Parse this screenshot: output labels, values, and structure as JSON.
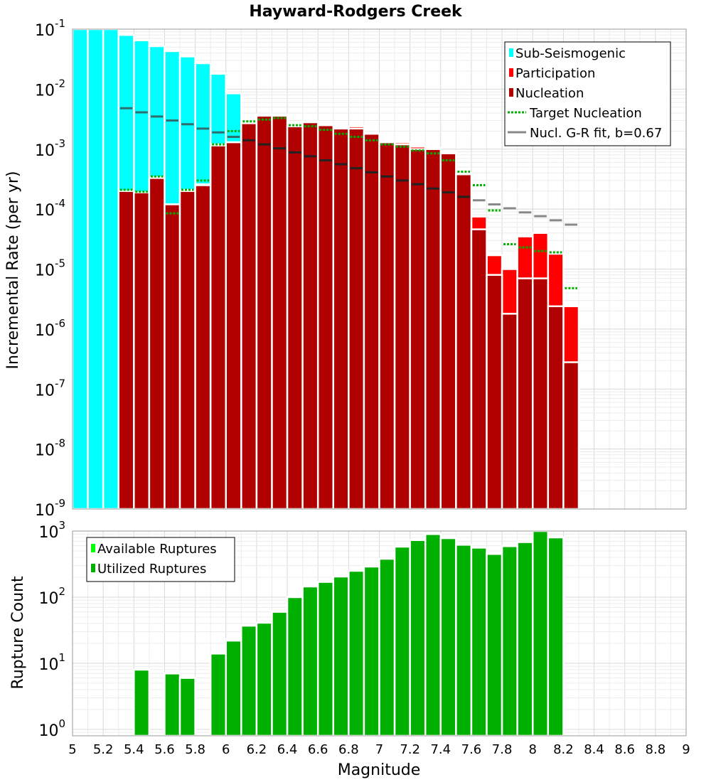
{
  "chart_data": [
    {
      "type": "bar",
      "title": "Hayward-Rodgers Creek",
      "xlabel": "",
      "ylabel": "Incremental Rate (per yr)",
      "y_scale": "log",
      "ylim": [
        1e-09,
        0.1
      ],
      "xlim": [
        5,
        9
      ],
      "y_ticks": [
        {
          "base": "10",
          "exp": "-9",
          "value": 1e-09
        },
        {
          "base": "10",
          "exp": "-8",
          "value": 1e-08
        },
        {
          "base": "10",
          "exp": "-7",
          "value": 1e-07
        },
        {
          "base": "10",
          "exp": "-6",
          "value": 1e-06
        },
        {
          "base": "10",
          "exp": "-5",
          "value": 1e-05
        },
        {
          "base": "10",
          "exp": "-4",
          "value": 0.0001
        },
        {
          "base": "10",
          "exp": "-3",
          "value": 0.001
        },
        {
          "base": "10",
          "exp": "-2",
          "value": 0.01
        },
        {
          "base": "10",
          "exp": "-1",
          "value": 0.1
        }
      ],
      "grid": true,
      "legend_position": "top-right",
      "series": [
        {
          "name": "Sub-Seismogenic",
          "color": "#00FFFF",
          "kind": "bar",
          "x": [
            5.05,
            5.15,
            5.25,
            5.35,
            5.45,
            5.55,
            5.65,
            5.75,
            5.85,
            5.95,
            6.05
          ],
          "values": [
            0.1,
            0.1,
            0.1,
            0.08,
            0.065,
            0.052,
            0.043,
            0.035,
            0.027,
            0.018,
            0.0085
          ]
        },
        {
          "name": "Participation",
          "color": "#FF0000",
          "kind": "bar",
          "x": [
            5.35,
            5.45,
            5.55,
            5.65,
            5.75,
            5.85,
            5.95,
            6.05,
            6.15,
            6.25,
            6.35,
            6.45,
            6.55,
            6.65,
            6.75,
            6.85,
            6.95,
            7.05,
            7.15,
            7.25,
            7.35,
            7.45,
            7.55,
            7.65,
            7.75,
            7.85,
            7.95,
            8.05,
            8.15,
            8.25
          ],
          "values": [
            0.0002,
            0.00019,
            0.00034,
            0.00012,
            0.00021,
            0.00026,
            0.0012,
            0.0013,
            0.0028,
            0.0038,
            0.0038,
            0.0025,
            0.0029,
            0.0026,
            0.0023,
            0.0024,
            0.0018,
            0.0013,
            0.0013,
            0.0011,
            0.00105,
            0.0009,
            0.0004,
            7.5e-05,
            1.7e-05,
            1e-05,
            3.5e-05,
            4e-05,
            1.8e-05,
            2.4e-06
          ]
        },
        {
          "name": "Nucleation",
          "color": "#B00000",
          "kind": "bar",
          "x": [
            5.35,
            5.45,
            5.55,
            5.65,
            5.75,
            5.85,
            5.95,
            6.05,
            6.15,
            6.25,
            6.35,
            6.45,
            6.55,
            6.65,
            6.75,
            6.85,
            6.95,
            7.05,
            7.15,
            7.25,
            7.35,
            7.45,
            7.55,
            7.65,
            7.75,
            7.85,
            7.95,
            8.05,
            8.15,
            8.25
          ],
          "values": [
            0.0002,
            0.00019,
            0.00033,
            0.00012,
            0.0002,
            0.00025,
            0.00115,
            0.0013,
            0.0027,
            0.0036,
            0.0036,
            0.0024,
            0.0028,
            0.0025,
            0.0022,
            0.0022,
            0.0018,
            0.0013,
            0.0012,
            0.001,
            0.001,
            0.00085,
            0.00038,
            4.6e-05,
            8e-06,
            1.8e-06,
            7e-06,
            7e-06,
            2.4e-06,
            2.8e-07
          ]
        },
        {
          "name": "Target Nucleation",
          "color": "#00B000",
          "kind": "dotted-step",
          "x": [
            5.35,
            5.45,
            5.55,
            5.65,
            5.75,
            5.85,
            5.95,
            6.05,
            6.15,
            6.25,
            6.35,
            6.45,
            6.55,
            6.65,
            6.75,
            6.85,
            6.95,
            7.05,
            7.15,
            7.25,
            7.35,
            7.45,
            7.55,
            7.65,
            7.75,
            7.85,
            7.95,
            8.05,
            8.15,
            8.25
          ],
          "values": [
            0.00021,
            0.000195,
            0.00035,
            8.5e-05,
            0.00021,
            0.0003,
            0.0012,
            0.002,
            0.0029,
            0.0031,
            0.0033,
            0.0025,
            0.0024,
            0.0021,
            0.0018,
            0.0016,
            0.0014,
            0.0012,
            0.0011,
            0.00095,
            0.00085,
            0.00065,
            0.00042,
            0.00025,
            9.5e-05,
            2.6e-05,
            2.3e-05,
            2e-05,
            1.9e-05,
            4.8e-06
          ]
        },
        {
          "name": "Nucl. G-R fit, b=0.67",
          "color": "#888888",
          "kind": "step",
          "x": [
            5.35,
            5.45,
            5.55,
            5.65,
            5.75,
            5.85,
            5.95,
            6.05,
            6.15,
            6.25,
            6.35,
            6.45,
            6.55,
            6.65,
            6.75,
            6.85,
            6.95,
            7.05,
            7.15,
            7.25,
            7.35,
            7.45,
            7.55,
            7.65,
            7.75,
            7.85,
            7.95,
            8.05,
            8.15,
            8.25
          ],
          "values": [
            0.0048,
            0.0041,
            0.0035,
            0.003,
            0.0026,
            0.0022,
            0.0019,
            0.0016,
            0.0014,
            0.0012,
            0.00103,
            0.00088,
            0.00076,
            0.00065,
            0.00056,
            0.00048,
            0.00041,
            0.00035,
            0.0003,
            0.00026,
            0.00022,
            0.00019,
            0.00016,
            0.00014,
            0.00012,
            0.000103,
            8.8e-05,
            7.6e-05,
            6.5e-05,
            5.5e-05
          ]
        }
      ]
    },
    {
      "type": "bar",
      "title": "",
      "xlabel": "Magnitude",
      "ylabel": "Rupture Count",
      "y_scale": "log",
      "ylim": [
        0.8,
        1000
      ],
      "xlim": [
        5,
        9
      ],
      "x_ticks": [
        "5",
        "5.2",
        "5.4",
        "5.6",
        "5.8",
        "6",
        "6.2",
        "6.4",
        "6.6",
        "6.8",
        "7",
        "7.2",
        "7.4",
        "7.6",
        "7.8",
        "8",
        "8.2",
        "8.4",
        "8.6",
        "8.8",
        "9"
      ],
      "y_ticks": [
        {
          "base": "10",
          "exp": "0",
          "value": 1
        },
        {
          "base": "10",
          "exp": "1",
          "value": 10
        },
        {
          "base": "10",
          "exp": "2",
          "value": 100
        },
        {
          "base": "10",
          "exp": "3",
          "value": 1000
        }
      ],
      "grid": true,
      "legend_position": "top-left",
      "series": [
        {
          "name": "Available Ruptures",
          "color": "#00FF00",
          "kind": "bar",
          "x": [
            5.45,
            5.65,
            5.75,
            5.95,
            6.05,
            6.15,
            6.25,
            6.35,
            6.45,
            6.55,
            6.65,
            6.75,
            6.85,
            6.95,
            7.05,
            7.15,
            7.25,
            7.35,
            7.45,
            7.55,
            7.65,
            7.75,
            7.85,
            7.95,
            8.05,
            8.15
          ],
          "values": [
            8,
            7,
            6,
            14,
            23,
            37,
            41,
            60,
            100,
            145,
            170,
            205,
            250,
            290,
            380,
            580,
            730,
            900,
            780,
            620,
            560,
            450,
            590,
            680,
            1000,
            800
          ]
        },
        {
          "name": "Utilized Ruptures",
          "color": "#00B000",
          "kind": "bar",
          "x": [
            5.45,
            5.65,
            5.75,
            5.95,
            6.05,
            6.15,
            6.25,
            6.35,
            6.45,
            6.55,
            6.65,
            6.75,
            6.85,
            6.95,
            7.05,
            7.15,
            7.25,
            7.35,
            7.45,
            7.55,
            7.65,
            7.75,
            7.85,
            7.95,
            8.05,
            8.15
          ],
          "values": [
            8,
            7,
            6,
            14,
            22,
            37,
            41,
            60,
            100,
            145,
            170,
            205,
            250,
            290,
            380,
            580,
            730,
            900,
            780,
            620,
            560,
            450,
            590,
            680,
            1000,
            800
          ]
        }
      ]
    }
  ]
}
